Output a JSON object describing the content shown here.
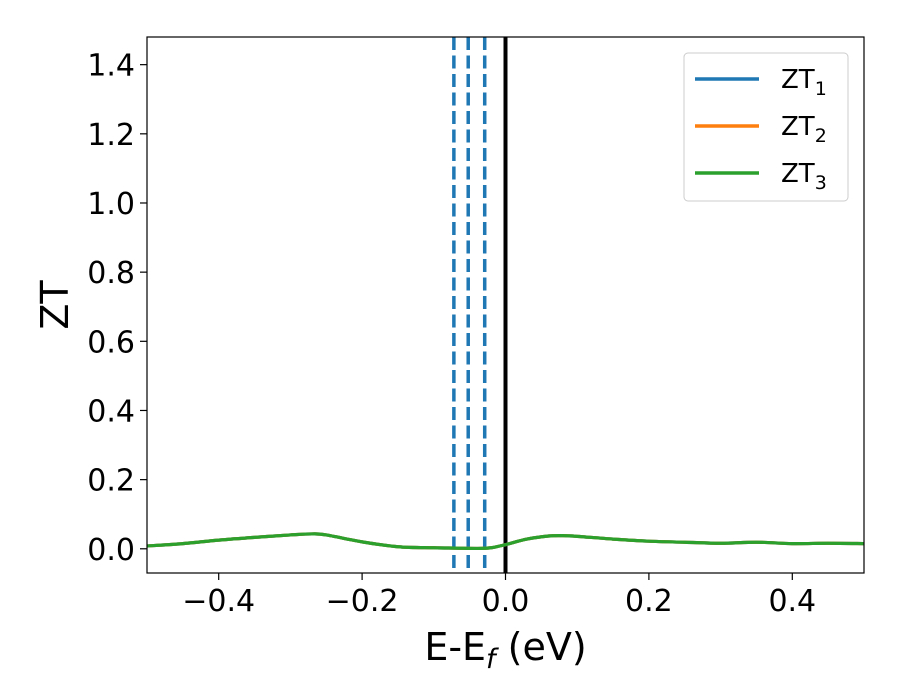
{
  "chart_data": {
    "type": "line",
    "xlabel_main": "E-E",
    "xlabel_sub": "f",
    "xlabel_unit": " (eV)",
    "ylabel": "ZT",
    "xlim": [
      -0.5,
      0.5
    ],
    "ylim": [
      -0.07,
      1.48
    ],
    "grid": false,
    "legend_position": "top-right",
    "x_ticks": [
      -0.4,
      -0.2,
      0.0,
      0.2,
      0.4
    ],
    "x_tick_labels": [
      "−0.4",
      "−0.2",
      "0.0",
      "0.2",
      "0.4"
    ],
    "y_ticks": [
      0.0,
      0.2,
      0.4,
      0.6,
      0.8,
      1.0,
      1.2,
      1.4
    ],
    "y_tick_labels": [
      "0.0",
      "0.2",
      "0.4",
      "0.6",
      "0.8",
      "1.0",
      "1.2",
      "1.4"
    ],
    "x": [
      -0.5,
      -0.45,
      -0.4,
      -0.35,
      -0.3,
      -0.27,
      -0.25,
      -0.2,
      -0.15,
      -0.1,
      -0.07,
      -0.04,
      -0.02,
      0.0,
      0.03,
      0.06,
      0.08,
      0.1,
      0.15,
      0.2,
      0.25,
      0.3,
      0.35,
      0.4,
      0.45,
      0.5
    ],
    "series": [
      {
        "name": "ZT",
        "name_sub": "1",
        "color": "#1f77b4",
        "values": [
          0.008,
          0.015,
          0.025,
          0.033,
          0.04,
          0.043,
          0.04,
          0.02,
          0.006,
          0.003,
          0.002,
          0.001,
          0.003,
          0.012,
          0.028,
          0.037,
          0.038,
          0.036,
          0.028,
          0.022,
          0.019,
          0.016,
          0.019,
          0.015,
          0.016,
          0.015
        ]
      },
      {
        "name": "ZT",
        "name_sub": "2",
        "color": "#ff7f0e",
        "values": [
          0.008,
          0.015,
          0.025,
          0.033,
          0.04,
          0.043,
          0.04,
          0.02,
          0.006,
          0.003,
          0.002,
          0.001,
          0.003,
          0.012,
          0.028,
          0.037,
          0.038,
          0.036,
          0.028,
          0.022,
          0.019,
          0.016,
          0.019,
          0.015,
          0.016,
          0.015
        ]
      },
      {
        "name": "ZT",
        "name_sub": "3",
        "color": "#2ca02c",
        "values": [
          0.008,
          0.015,
          0.025,
          0.033,
          0.04,
          0.043,
          0.04,
          0.02,
          0.006,
          0.003,
          0.002,
          0.001,
          0.003,
          0.012,
          0.028,
          0.037,
          0.038,
          0.036,
          0.028,
          0.022,
          0.019,
          0.016,
          0.019,
          0.015,
          0.016,
          0.015
        ]
      }
    ],
    "vertical_lines": [
      {
        "x": -0.072,
        "style": "dashed",
        "color": "#1f77b4"
      },
      {
        "x": -0.052,
        "style": "dashed",
        "color": "#1f77b4"
      },
      {
        "x": -0.029,
        "style": "dashed",
        "color": "#1f77b4"
      },
      {
        "x": 0.0,
        "style": "solid",
        "color": "#000000"
      }
    ]
  }
}
